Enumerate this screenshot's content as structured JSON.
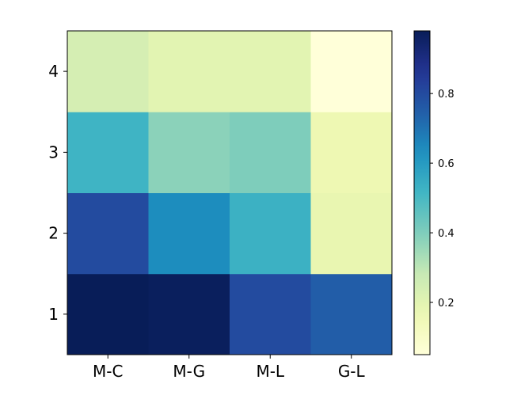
{
  "chart_data": {
    "type": "heatmap",
    "x_categories": [
      "M-C",
      "M-G",
      "M-L",
      "G-L"
    ],
    "y_categories": [
      "1",
      "2",
      "3",
      "4"
    ],
    "values": [
      [
        0.98,
        0.97,
        0.8,
        0.75
      ],
      [
        0.8,
        0.64,
        0.53,
        0.18
      ],
      [
        0.52,
        0.38,
        0.4,
        0.16
      ],
      [
        0.24,
        0.2,
        0.2,
        0.05
      ]
    ],
    "colorbar": {
      "min": 0.05,
      "max": 0.98,
      "ticks": [
        0.2,
        0.4,
        0.6,
        0.8
      ],
      "tick_labels": [
        "0.2",
        "0.4",
        "0.6",
        "0.8"
      ],
      "colormap": "YlGnBu"
    },
    "grid": false,
    "title": "",
    "xlabel": "",
    "ylabel": ""
  }
}
